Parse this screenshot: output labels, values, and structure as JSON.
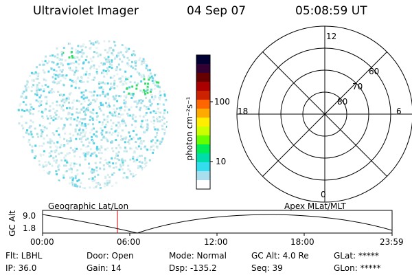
{
  "header": {
    "instrument": "Ultraviolet Imager",
    "date": "04 Sep 07",
    "time": "05:08:59 UT"
  },
  "colorbar": {
    "unit_label": "photon cm⁻²s⁻¹",
    "ticks": [
      "100",
      "10"
    ],
    "colors": [
      "#000033",
      "#330033",
      "#660000",
      "#aa0000",
      "#cc2200",
      "#ff6600",
      "#ffaa00",
      "#ffee00",
      "#ccff00",
      "#66ff00",
      "#00ee55",
      "#00ddaa",
      "#33ddee",
      "#aaddee",
      "#ffffff"
    ]
  },
  "polar": {
    "mlt_labels": {
      "top": "12",
      "left": "18",
      "right": "6",
      "bottom": "0"
    },
    "lat_labels": [
      "60",
      "70",
      "80"
    ]
  },
  "timeline": {
    "y_axis_label": "GC Alt",
    "y_ticks": [
      "9.0",
      "1.8"
    ],
    "left_label": "Geographic Lat/Lon",
    "right_label": "Apex MLat/MLT",
    "x_ticks": [
      "00:00",
      "06:00",
      "12:00",
      "18:00",
      "23:59"
    ]
  },
  "footer": {
    "row1": [
      "Flt: LBHL",
      "Door: Open",
      "Mode: Normal",
      "GC Alt: 4.0 Re",
      "GLat: *****"
    ],
    "row2": [
      "IP: 36.0",
      "Gain: 14",
      "Dsp: -135.2",
      "Seq: 39",
      "GLon: *****"
    ]
  }
}
